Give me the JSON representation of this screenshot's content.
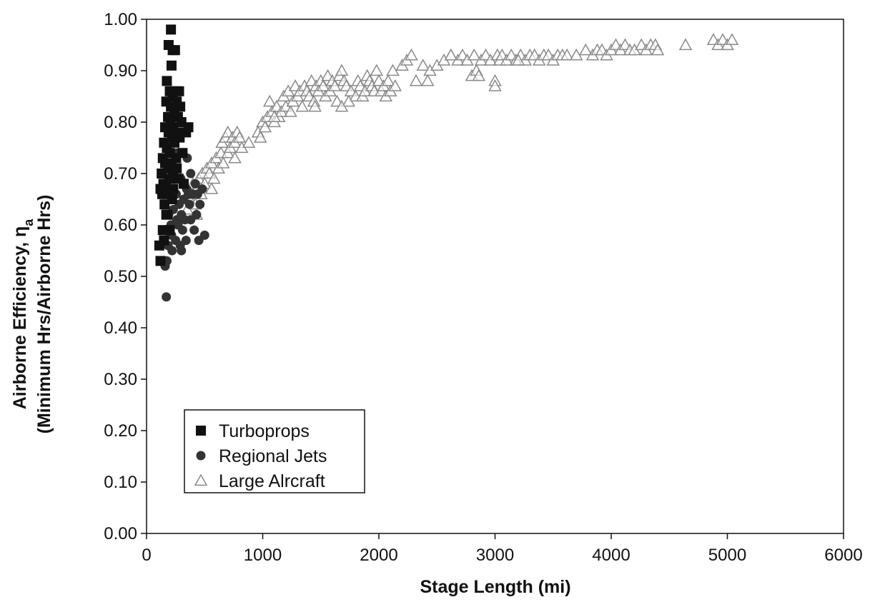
{
  "chart_data": {
    "type": "scatter",
    "xlabel": "Stage Length (mi)",
    "ylabel": {
      "line1_prefix": "Airborne Efficiency, η",
      "line1_subscript": "a",
      "line2": "(Minimum Hrs/Airborne Hrs)"
    },
    "xlim": [
      0,
      6000
    ],
    "ylim": [
      0,
      1.0
    ],
    "x_ticks": [
      0,
      1000,
      2000,
      3000,
      4000,
      5000,
      6000
    ],
    "x_tick_labels": [
      "0",
      "1000",
      "2000",
      "3000",
      "4000",
      "5000",
      "6000"
    ],
    "y_ticks": [
      0,
      0.1,
      0.2,
      0.3,
      0.4,
      0.5,
      0.6,
      0.7,
      0.8,
      0.9,
      1.0
    ],
    "y_tick_labels": [
      "0.00",
      "0.10",
      "0.20",
      "0.30",
      "0.40",
      "0.50",
      "0.60",
      "0.70",
      "0.80",
      "0.90",
      "1.00"
    ],
    "grid": false,
    "legend_position": "bottom-left",
    "series": [
      {
        "name": "Turboprops",
        "marker": "square",
        "color": "#111111",
        "points": [
          [
            110,
            0.56
          ],
          [
            120,
            0.53
          ],
          [
            130,
            0.7
          ],
          [
            135,
            0.66
          ],
          [
            140,
            0.73
          ],
          [
            145,
            0.68
          ],
          [
            150,
            0.76
          ],
          [
            150,
            0.57
          ],
          [
            155,
            0.64
          ],
          [
            160,
            0.79
          ],
          [
            160,
            0.72
          ],
          [
            165,
            0.68
          ],
          [
            170,
            0.84
          ],
          [
            170,
            0.62
          ],
          [
            175,
            0.88
          ],
          [
            175,
            0.75
          ],
          [
            180,
            0.66
          ],
          [
            185,
            0.81
          ],
          [
            185,
            0.71
          ],
          [
            190,
            0.95
          ],
          [
            190,
            0.78
          ],
          [
            195,
            0.69
          ],
          [
            200,
            0.86
          ],
          [
            200,
            0.74
          ],
          [
            205,
            0.8
          ],
          [
            205,
            0.67
          ],
          [
            210,
            0.98
          ],
          [
            210,
            0.83
          ],
          [
            215,
            0.72
          ],
          [
            215,
            0.91
          ],
          [
            220,
            0.77
          ],
          [
            220,
            0.65
          ],
          [
            225,
            0.94
          ],
          [
            225,
            0.85
          ],
          [
            230,
            0.79
          ],
          [
            230,
            0.7
          ],
          [
            240,
            0.82
          ],
          [
            240,
            0.76
          ],
          [
            245,
            0.94
          ],
          [
            250,
            0.86
          ],
          [
            255,
            0.73
          ],
          [
            260,
            0.84
          ],
          [
            265,
            0.78
          ],
          [
            270,
            0.81
          ],
          [
            275,
            0.69
          ],
          [
            280,
            0.86
          ],
          [
            285,
            0.77
          ],
          [
            290,
            0.83
          ],
          [
            300,
            0.8
          ],
          [
            310,
            0.74
          ],
          [
            320,
            0.68
          ],
          [
            340,
            0.78
          ],
          [
            360,
            0.79
          ],
          [
            120,
            0.67
          ],
          [
            140,
            0.59
          ],
          [
            180,
            0.62
          ],
          [
            200,
            0.59
          ],
          [
            230,
            0.67
          ],
          [
            260,
            0.71
          ]
        ]
      },
      {
        "name": "Regional Jets",
        "marker": "circle",
        "color": "#333333",
        "points": [
          [
            160,
            0.52
          ],
          [
            170,
            0.46
          ],
          [
            175,
            0.53
          ],
          [
            185,
            0.56
          ],
          [
            190,
            0.62
          ],
          [
            200,
            0.66
          ],
          [
            210,
            0.6
          ],
          [
            215,
            0.58
          ],
          [
            220,
            0.55
          ],
          [
            230,
            0.63
          ],
          [
            240,
            0.71
          ],
          [
            250,
            0.57
          ],
          [
            255,
            0.66
          ],
          [
            260,
            0.61
          ],
          [
            270,
            0.6
          ],
          [
            280,
            0.64
          ],
          [
            290,
            0.56
          ],
          [
            295,
            0.69
          ],
          [
            300,
            0.62
          ],
          [
            310,
            0.59
          ],
          [
            320,
            0.65
          ],
          [
            330,
            0.61
          ],
          [
            340,
            0.57
          ],
          [
            345,
            0.67
          ],
          [
            350,
            0.73
          ],
          [
            360,
            0.66
          ],
          [
            370,
            0.64
          ],
          [
            380,
            0.61
          ],
          [
            400,
            0.66
          ],
          [
            410,
            0.59
          ],
          [
            420,
            0.68
          ],
          [
            430,
            0.62
          ],
          [
            440,
            0.66
          ],
          [
            460,
            0.64
          ],
          [
            480,
            0.67
          ],
          [
            500,
            0.58
          ],
          [
            450,
            0.57
          ],
          [
            300,
            0.55
          ],
          [
            380,
            0.7
          ],
          [
            260,
            0.74
          ]
        ]
      },
      {
        "name": "Large Alrcraft",
        "marker": "triangle-open",
        "color": "#8a8a8a",
        "points": [
          [
            350,
            0.63
          ],
          [
            370,
            0.65
          ],
          [
            390,
            0.66
          ],
          [
            400,
            0.68
          ],
          [
            420,
            0.64
          ],
          [
            430,
            0.67
          ],
          [
            450,
            0.69
          ],
          [
            470,
            0.66
          ],
          [
            480,
            0.7
          ],
          [
            500,
            0.68
          ],
          [
            520,
            0.71
          ],
          [
            540,
            0.7
          ],
          [
            560,
            0.72
          ],
          [
            580,
            0.69
          ],
          [
            600,
            0.73
          ],
          [
            620,
            0.71
          ],
          [
            640,
            0.74
          ],
          [
            650,
            0.76
          ],
          [
            660,
            0.72
          ],
          [
            680,
            0.77
          ],
          [
            700,
            0.78
          ],
          [
            700,
            0.74
          ],
          [
            720,
            0.75
          ],
          [
            740,
            0.77
          ],
          [
            760,
            0.76
          ],
          [
            780,
            0.78
          ],
          [
            800,
            0.77
          ],
          [
            820,
            0.75
          ],
          [
            960,
            0.78
          ],
          [
            980,
            0.77
          ],
          [
            1000,
            0.8
          ],
          [
            1020,
            0.79
          ],
          [
            1040,
            0.81
          ],
          [
            1060,
            0.84
          ],
          [
            1080,
            0.82
          ],
          [
            1100,
            0.8
          ],
          [
            1120,
            0.83
          ],
          [
            1140,
            0.81
          ],
          [
            1160,
            0.82
          ],
          [
            1180,
            0.85
          ],
          [
            1200,
            0.83
          ],
          [
            1220,
            0.86
          ],
          [
            1240,
            0.82
          ],
          [
            1260,
            0.84
          ],
          [
            1280,
            0.87
          ],
          [
            1300,
            0.85
          ],
          [
            1320,
            0.86
          ],
          [
            1340,
            0.83
          ],
          [
            1360,
            0.87
          ],
          [
            1380,
            0.86
          ],
          [
            1400,
            0.85
          ],
          [
            1420,
            0.88
          ],
          [
            1440,
            0.84
          ],
          [
            1460,
            0.87
          ],
          [
            1480,
            0.86
          ],
          [
            1500,
            0.88
          ],
          [
            1520,
            0.87
          ],
          [
            1540,
            0.85
          ],
          [
            1560,
            0.89
          ],
          [
            1580,
            0.86
          ],
          [
            1600,
            0.88
          ],
          [
            1620,
            0.87
          ],
          [
            1640,
            0.84
          ],
          [
            1660,
            0.89
          ],
          [
            1680,
            0.9
          ],
          [
            1700,
            0.88
          ],
          [
            1720,
            0.87
          ],
          [
            1760,
            0.86
          ],
          [
            1800,
            0.85
          ],
          [
            1820,
            0.88
          ],
          [
            1840,
            0.87
          ],
          [
            1860,
            0.85
          ],
          [
            1880,
            0.86
          ],
          [
            1900,
            0.89
          ],
          [
            1920,
            0.88
          ],
          [
            1940,
            0.87
          ],
          [
            1960,
            0.86
          ],
          [
            1980,
            0.9
          ],
          [
            2000,
            0.88
          ],
          [
            2020,
            0.86
          ],
          [
            2040,
            0.87
          ],
          [
            2060,
            0.85
          ],
          [
            2080,
            0.88
          ],
          [
            2100,
            0.86
          ],
          [
            2120,
            0.9
          ],
          [
            2140,
            0.87
          ],
          [
            2200,
            0.91
          ],
          [
            2240,
            0.92
          ],
          [
            2280,
            0.93
          ],
          [
            2320,
            0.88
          ],
          [
            2380,
            0.91
          ],
          [
            2440,
            0.9
          ],
          [
            2500,
            0.91
          ],
          [
            2560,
            0.92
          ],
          [
            2620,
            0.93
          ],
          [
            2680,
            0.92
          ],
          [
            2720,
            0.93
          ],
          [
            2760,
            0.92
          ],
          [
            2800,
            0.89
          ],
          [
            2820,
            0.93
          ],
          [
            2840,
            0.9
          ],
          [
            2880,
            0.92
          ],
          [
            2920,
            0.93
          ],
          [
            2960,
            0.92
          ],
          [
            3000,
            0.88
          ],
          [
            3020,
            0.93
          ],
          [
            3040,
            0.92
          ],
          [
            3060,
            0.93
          ],
          [
            3100,
            0.92
          ],
          [
            3140,
            0.93
          ],
          [
            3180,
            0.92
          ],
          [
            3220,
            0.93
          ],
          [
            3260,
            0.92
          ],
          [
            3300,
            0.93
          ],
          [
            3340,
            0.93
          ],
          [
            3380,
            0.92
          ],
          [
            3420,
            0.93
          ],
          [
            3460,
            0.93
          ],
          [
            3500,
            0.92
          ],
          [
            3540,
            0.93
          ],
          [
            3580,
            0.93
          ],
          [
            3620,
            0.93
          ],
          [
            3700,
            0.93
          ],
          [
            3780,
            0.94
          ],
          [
            3840,
            0.93
          ],
          [
            3880,
            0.94
          ],
          [
            3920,
            0.94
          ],
          [
            3960,
            0.93
          ],
          [
            4000,
            0.94
          ],
          [
            4040,
            0.95
          ],
          [
            4080,
            0.94
          ],
          [
            4120,
            0.95
          ],
          [
            4160,
            0.94
          ],
          [
            4200,
            0.94
          ],
          [
            4260,
            0.95
          ],
          [
            4300,
            0.94
          ],
          [
            4340,
            0.95
          ],
          [
            4380,
            0.95
          ],
          [
            4400,
            0.94
          ],
          [
            4640,
            0.95
          ],
          [
            4880,
            0.96
          ],
          [
            4920,
            0.95
          ],
          [
            4960,
            0.96
          ],
          [
            5000,
            0.95
          ],
          [
            5040,
            0.96
          ],
          [
            2420,
            0.88
          ],
          [
            1740,
            0.84
          ],
          [
            1680,
            0.83
          ],
          [
            1450,
            0.83
          ],
          [
            1100,
            0.81
          ],
          [
            880,
            0.76
          ],
          [
            760,
            0.73
          ],
          [
            560,
            0.67
          ],
          [
            430,
            0.62
          ],
          [
            2620,
            0.93
          ],
          [
            3000,
            0.87
          ],
          [
            2860,
            0.89
          ],
          [
            3200,
            0.92
          ]
        ]
      }
    ]
  }
}
